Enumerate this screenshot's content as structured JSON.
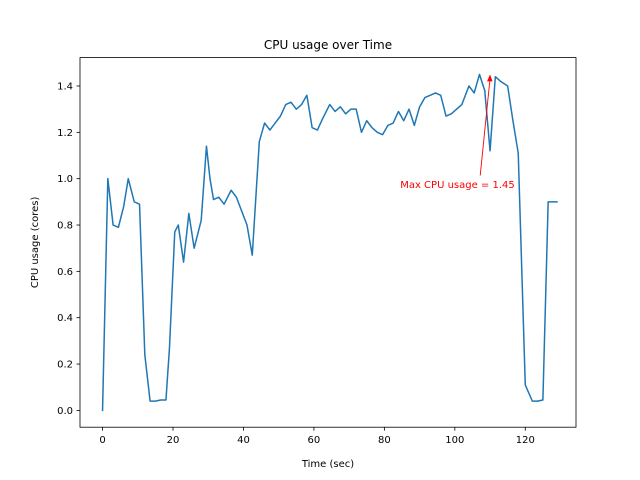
{
  "chart_data": {
    "type": "line",
    "title": "CPU usage over Time",
    "xlabel": "Time (sec)",
    "ylabel": "CPU usage (cores)",
    "xlim": [
      -6.4,
      134.4
    ],
    "ylim": [
      -0.0725,
      1.5225
    ],
    "xticks": [
      0,
      20,
      40,
      60,
      80,
      100,
      120
    ],
    "yticks": [
      0.0,
      0.2,
      0.4,
      0.6,
      0.8,
      1.0,
      1.2,
      1.4
    ],
    "xtick_labels": [
      "0",
      "20",
      "40",
      "60",
      "80",
      "100",
      "120"
    ],
    "ytick_labels": [
      "0.0",
      "0.2",
      "0.4",
      "0.6",
      "0.8",
      "1.0",
      "1.2",
      "1.4"
    ],
    "grid": false,
    "series": [
      {
        "color": "#1f77b4",
        "x": [
          0,
          1.5,
          3,
          4.5,
          6,
          7.3,
          9,
          10.5,
          12,
          13.5,
          15,
          16.5,
          18,
          19,
          20.5,
          21.5,
          23,
          24.5,
          26,
          28,
          29.5,
          30.5,
          31.5,
          33,
          34.5,
          36.5,
          38,
          39.5,
          41,
          42.5,
          44.5,
          46,
          47.5,
          49,
          50.5,
          52,
          53.5,
          55,
          56.5,
          58,
          59.5,
          61,
          62.5,
          64.5,
          66,
          67.5,
          69,
          70.5,
          72,
          73.5,
          75,
          76.5,
          78,
          79.5,
          81,
          82.5,
          84,
          85.5,
          87,
          88.5,
          90,
          91.5,
          93,
          94.5,
          96,
          97.5,
          99,
          100.5,
          102,
          104,
          105.5,
          107,
          108.5,
          110,
          111.5,
          113,
          115,
          116.5,
          118,
          120,
          122,
          123.5,
          125,
          126.5,
          128,
          129
        ],
        "y": [
          0.0,
          1.0,
          0.8,
          0.79,
          0.88,
          1.0,
          0.9,
          0.89,
          0.24,
          0.04,
          0.04,
          0.045,
          0.045,
          0.27,
          0.77,
          0.8,
          0.64,
          0.85,
          0.7,
          0.82,
          1.14,
          1.0,
          0.91,
          0.92,
          0.89,
          0.95,
          0.92,
          0.86,
          0.8,
          0.67,
          1.16,
          1.24,
          1.21,
          1.24,
          1.27,
          1.32,
          1.33,
          1.3,
          1.32,
          1.36,
          1.22,
          1.21,
          1.26,
          1.32,
          1.29,
          1.31,
          1.28,
          1.3,
          1.3,
          1.2,
          1.25,
          1.22,
          1.2,
          1.19,
          1.23,
          1.24,
          1.29,
          1.25,
          1.3,
          1.23,
          1.31,
          1.35,
          1.36,
          1.37,
          1.36,
          1.27,
          1.28,
          1.3,
          1.32,
          1.4,
          1.37,
          1.45,
          1.38,
          1.12,
          1.44,
          1.42,
          1.4,
          1.25,
          1.11,
          0.11,
          0.04,
          0.04,
          0.045,
          0.9,
          0.9,
          0.9
        ]
      }
    ],
    "annotations": [
      {
        "text": "Max CPU usage = 1.45",
        "color": "#ff0000",
        "text_x": 84.5,
        "text_y": 0.975,
        "point_x": 110,
        "point_y": 1.45
      }
    ]
  }
}
